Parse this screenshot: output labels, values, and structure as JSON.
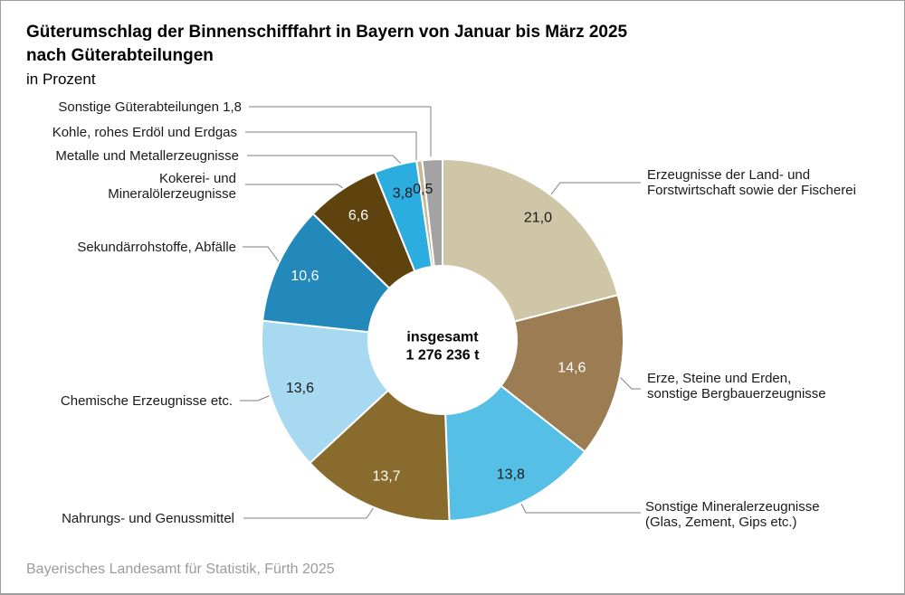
{
  "header": {
    "title_line1": "Güterumschlag der Binnenschifffahrt in Bayern von Januar bis März 2025",
    "title_line2": "nach Güterabteilungen",
    "subtitle": "in Prozent"
  },
  "footer": {
    "source": "Bayerisches Landesamt für Statistik, Fürth 2025"
  },
  "chart_data": {
    "type": "pie",
    "subtype": "donut",
    "title": "Güterumschlag der Binnenschifffahrt in Bayern von Januar bis März 2025 nach Güterabteilungen",
    "unit": "in Prozent",
    "center": {
      "label": "insgesamt",
      "value": "1 276 236 t"
    },
    "start_angle_deg": 0,
    "direction": "clockwise",
    "separator_color": "#ffffff",
    "leader_line_color": "#7f7f7f",
    "segments": [
      {
        "name": "Erzeugnisse der Land- und Forstwirtschaft sowie der Fischerei",
        "value": 21.0,
        "value_label": "21,0",
        "color": "#cfc6a7",
        "value_color": "#1a1a1a",
        "value_r": 172,
        "callout_lines": [
          "Erzeugnisse der Land- und",
          "Forstwirtschaft sowie der Fischerei"
        ]
      },
      {
        "name": "Erze, Steine und Erden, sonstige Bergbauerzeugnisse",
        "value": 14.6,
        "value_label": "14,6",
        "color": "#9c7c52",
        "value_color": "#ffffff",
        "value_r": 146,
        "callout_lines": [
          "Erze, Steine und Erden,",
          "sonstige Bergbauerzeugnisse"
        ]
      },
      {
        "name": "Sonstige Mineralerzeugnisse (Glas, Zement, Gips etc.)",
        "value": 13.8,
        "value_label": "13,8",
        "color": "#55bfe5",
        "value_color": "#1a1a1a",
        "value_r": 166,
        "callout_lines": [
          "Sonstige Mineralerzeugnisse",
          "(Glas, Zement, Gips etc.)"
        ]
      },
      {
        "name": "Nahrungs- und Genussmittel",
        "value": 13.7,
        "value_label": "13,7",
        "color": "#886b2d",
        "value_color": "#ffffff",
        "value_r": 162,
        "callout_lines": [
          "Nahrungs- und Genussmittel"
        ]
      },
      {
        "name": "Chemische Erzeugnisse etc.",
        "value": 13.6,
        "value_label": "13,6",
        "color": "#a7d9f0",
        "value_color": "#1a1a1a",
        "value_r": 166,
        "callout_lines": [
          "Chemische Erzeugnisse etc."
        ]
      },
      {
        "name": "Sekundärrohstoffe, Abfälle",
        "value": 10.6,
        "value_label": "10,6",
        "color": "#2289ba",
        "value_color": "#ffffff",
        "value_r": 168,
        "callout_lines": [
          "Sekundärrohstoffe, Abfälle"
        ]
      },
      {
        "name": "Kokerei- und Mineralölerzeugnisse",
        "value": 6.6,
        "value_label": "6,6",
        "color": "#5e430f",
        "value_color": "#ffffff",
        "value_r": 167,
        "callout_lines": [
          "Kokerei- und",
          "Mineralölerzeugnisse"
        ]
      },
      {
        "name": "Metalle und Metallerzeugnisse",
        "value": 3.8,
        "value_label": "3,8",
        "color": "#2bade0",
        "value_color": "#1a1a1a",
        "value_r": 169,
        "callout_lines": [
          "Metalle und Metallerzeugnisse"
        ]
      },
      {
        "name": "Kohle, rohes Erdöl und Erdgas",
        "value": 0.5,
        "value_label": "0,5",
        "color": "#c7b794",
        "value_color": "#1a1a1a",
        "value_r": 169,
        "callout_lines": [
          "Kohle, rohes Erdöl und Erdgas"
        ]
      },
      {
        "name": "Sonstige Güterabteilungen",
        "value": 1.8,
        "value_label": null,
        "color": "#a3a3a3",
        "value_color": "#1a1a1a",
        "value_r": 160,
        "callout_lines": [
          "Sonstige Güterabteilungen 1,8"
        ]
      }
    ]
  }
}
